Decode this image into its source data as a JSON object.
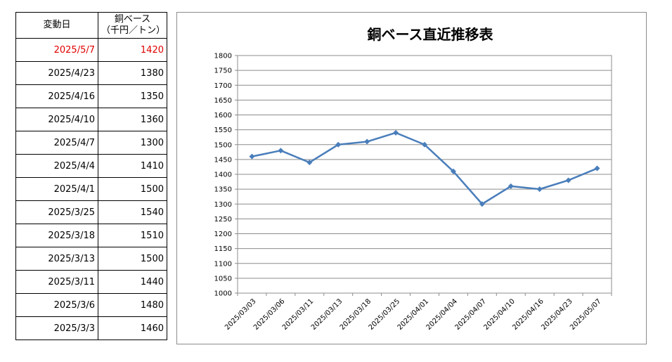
{
  "table": {
    "header_date": "変動日",
    "header_price_line1": "銅ベース",
    "header_price_line2": "（千円／トン）",
    "rows": [
      {
        "date": "2025/5/7",
        "price": "1420"
      },
      {
        "date": "2025/4/23",
        "price": "1380"
      },
      {
        "date": "2025/4/16",
        "price": "1350"
      },
      {
        "date": "2025/4/10",
        "price": "1360"
      },
      {
        "date": "2025/4/7",
        "price": "1300"
      },
      {
        "date": "2025/4/4",
        "price": "1410"
      },
      {
        "date": "2025/4/1",
        "price": "1500"
      },
      {
        "date": "2025/3/25",
        "price": "1540"
      },
      {
        "date": "2025/3/18",
        "price": "1510"
      },
      {
        "date": "2025/3/13",
        "price": "1500"
      },
      {
        "date": "2025/3/11",
        "price": "1440"
      },
      {
        "date": "2025/3/6",
        "price": "1480"
      },
      {
        "date": "2025/3/3",
        "price": "1460"
      }
    ],
    "latest_color": "#e00000"
  },
  "chart_data": {
    "type": "line",
    "title": "銅ベース直近推移表",
    "xlabel": "",
    "ylabel": "",
    "x": [
      "2025/03/03",
      "2025/03/06",
      "2025/03/11",
      "2025/03/13",
      "2025/03/18",
      "2025/03/25",
      "2025/04/01",
      "2025/04/04",
      "2025/04/07",
      "2025/04/10",
      "2025/04/16",
      "2025/04/23",
      "2025/05/07"
    ],
    "series": [
      {
        "name": "",
        "values": [
          1460,
          1480,
          1440,
          1500,
          1510,
          1540,
          1500,
          1410,
          1300,
          1360,
          1350,
          1380,
          1420
        ],
        "color": "#4a7ebb"
      }
    ],
    "ylim": [
      1000,
      1800
    ],
    "ystep": 50,
    "grid": true,
    "legend": "none",
    "marker": "diamond"
  }
}
